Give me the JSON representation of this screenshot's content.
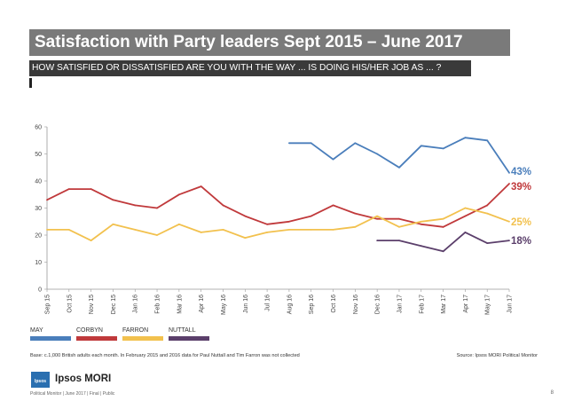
{
  "header": {
    "title": "Satisfaction with Party leaders Sept 2015 – June 2017",
    "subtitle": "HOW SATISFIED OR DISSATISFIED ARE YOU WITH THE WAY ... IS DOING HIS/HER JOB AS ... ?"
  },
  "chart_data": {
    "type": "line",
    "ylim": [
      0,
      60
    ],
    "yticks": [
      "0",
      "10",
      "20",
      "30",
      "40",
      "50",
      "60"
    ],
    "grid": false,
    "legend_position": "bottom-left",
    "categories": [
      "Sep 15",
      "Oct 15",
      "Nov 15",
      "Dec 15",
      "Jan 16",
      "Feb 16",
      "Mar 16",
      "Apr 16",
      "May 16",
      "Jun 16",
      "Jul 16",
      "Aug 16",
      "Sep 16",
      "Oct 16",
      "Nov 16",
      "Dec 16",
      "Jan 17",
      "Feb 17",
      "Mar 17",
      "Apr 17",
      "May 17",
      "Jun 17"
    ],
    "series": [
      {
        "name": "MAY",
        "color": "#4a7ebb",
        "end_label": "43%",
        "values": [
          null,
          null,
          null,
          null,
          null,
          null,
          null,
          null,
          null,
          null,
          null,
          54,
          54,
          48,
          54,
          50,
          45,
          53,
          52,
          56,
          55,
          43
        ]
      },
      {
        "name": "CORBYN",
        "color": "#c0393b",
        "end_label": "39%",
        "values": [
          33,
          37,
          37,
          33,
          31,
          30,
          35,
          38,
          31,
          27,
          24,
          25,
          27,
          31,
          28,
          26,
          26,
          24,
          23,
          27,
          31,
          39
        ]
      },
      {
        "name": "FARRON",
        "color": "#f2c14e",
        "end_label": "25%",
        "values": [
          22,
          22,
          18,
          24,
          22,
          20,
          24,
          21,
          22,
          19,
          21,
          22,
          22,
          22,
          23,
          27,
          23,
          25,
          26,
          30,
          28,
          25
        ]
      },
      {
        "name": "NUTTALL",
        "color": "#5b3f6b",
        "end_label": "18%",
        "values": [
          null,
          null,
          null,
          null,
          null,
          null,
          null,
          null,
          null,
          null,
          null,
          null,
          null,
          null,
          null,
          18,
          18,
          16,
          14,
          21,
          17,
          18
        ]
      }
    ]
  },
  "notes": {
    "base": "Base: c.1,000 British adults each month. In February 2015 and 2016 data for Paul Nuttall and Tim Farron was not collected",
    "source": "Source: Ipsos MORI Political Monitor"
  },
  "footer": {
    "logo_badge": "Ipsos",
    "logo_text": "Ipsos MORI",
    "text": "Political Monitor | June 2017 | Final | Public",
    "page_number": "8"
  }
}
